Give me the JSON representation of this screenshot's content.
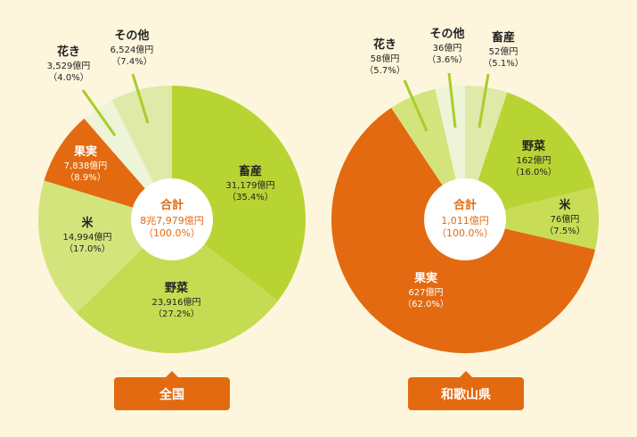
{
  "chart_data": [
    {
      "type": "pie",
      "title": "全国",
      "center_label": {
        "name": "合計",
        "value": "8兆7,979億円",
        "percent": "（100.0%）"
      },
      "slices": [
        {
          "name": "畜産",
          "value": 31179,
          "value_label": "31,179億円",
          "percent": 35.4,
          "percent_label": "（35.4%）",
          "color": "#b8d433"
        },
        {
          "name": "野菜",
          "value": 23916,
          "value_label": "23,916億円",
          "percent": 27.2,
          "percent_label": "（27.2%）",
          "color": "#c5dc52"
        },
        {
          "name": "米",
          "value": 14994,
          "value_label": "14,994億円",
          "percent": 17.0,
          "percent_label": "（17.0%）",
          "color": "#d3e47c"
        },
        {
          "name": "果実",
          "value": 7838,
          "value_label": "7,838億円",
          "percent": 8.9,
          "percent_label": "（8.9%）",
          "color": "#e36a10"
        },
        {
          "name": "花き",
          "value": 3529,
          "value_label": "3,529億円",
          "percent": 4.0,
          "percent_label": "（4.0%）",
          "color": "#eef4d8"
        },
        {
          "name": "その他",
          "value": 6524,
          "value_label": "6,524億円",
          "percent": 7.4,
          "percent_label": "（7.4%）",
          "color": "#dfeaa8"
        }
      ]
    },
    {
      "type": "pie",
      "title": "和歌山県",
      "center_label": {
        "name": "合計",
        "value": "1,011億円",
        "percent": "（100.0%）"
      },
      "slices": [
        {
          "name": "畜産",
          "value": 52,
          "value_label": "52億円",
          "percent": 5.1,
          "percent_label": "（5.1%）",
          "color": "#dfeaa8"
        },
        {
          "name": "野菜",
          "value": 162,
          "value_label": "162億円",
          "percent": 16.0,
          "percent_label": "（16.0%）",
          "color": "#b8d433"
        },
        {
          "name": "米",
          "value": 76,
          "value_label": "76億円",
          "percent": 7.5,
          "percent_label": "（7.5%）",
          "color": "#c8dd55"
        },
        {
          "name": "果実",
          "value": 627,
          "value_label": "627億円",
          "percent": 62.0,
          "percent_label": "（62.0%）",
          "color": "#e36a10"
        },
        {
          "name": "花き",
          "value": 58,
          "value_label": "58億円",
          "percent": 5.7,
          "percent_label": "（5.7%）",
          "color": "#d3e47c"
        },
        {
          "name": "その他",
          "value": 36,
          "value_label": "36億円",
          "percent": 3.6,
          "percent_label": "（3.6%）",
          "color": "#eef4d8"
        }
      ]
    }
  ]
}
